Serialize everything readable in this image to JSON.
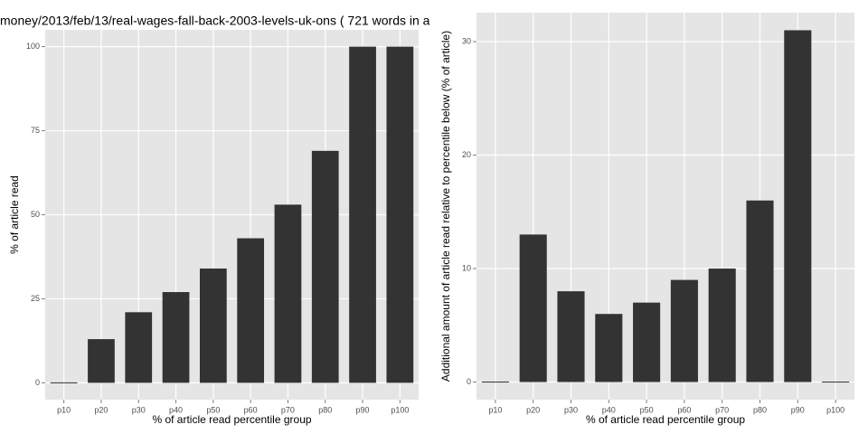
{
  "chart_data": [
    {
      "type": "bar",
      "title": "money/2013/feb/13/real-wages-fall-back-2003-levels-uk-ons ( 721 words in a",
      "x_label": "% of article read percentile group",
      "y_label": "% of article read",
      "categories": [
        "p10",
        "p20",
        "p30",
        "p40",
        "p50",
        "p60",
        "p70",
        "p80",
        "p90",
        "p100"
      ],
      "values": [
        0,
        13,
        21,
        27,
        34,
        43,
        53,
        69,
        100,
        100
      ],
      "color": "#333333",
      "ylim": [
        -5,
        105
      ],
      "yticks": [
        0,
        25,
        50,
        75,
        100
      ],
      "grid": true
    },
    {
      "type": "bar",
      "x_label": "% of article read percentile group",
      "y_label": "Additional amount of article read relative to percentile below (% of article)",
      "categories": [
        "p10",
        "p20",
        "p30",
        "p40",
        "p50",
        "p60",
        "p70",
        "p80",
        "p90",
        "p100"
      ],
      "values": [
        0,
        13,
        8,
        6,
        7,
        9,
        10,
        16,
        31,
        0
      ],
      "color": "#333333",
      "ylim": [
        -1.55,
        32.55
      ],
      "yticks": [
        0,
        10,
        20,
        30
      ],
      "grid": true
    }
  ]
}
